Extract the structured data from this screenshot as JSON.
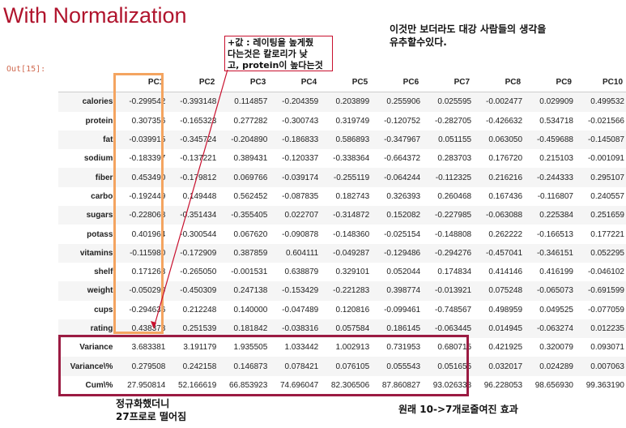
{
  "title": "With Normalization",
  "cell_label": "Out[15]:",
  "notes": {
    "top_right": [
      "이것만 보더라도 대강 사람들의 생각을",
      "유추할수있다."
    ],
    "callout": [
      "+값 : 레이팅을 높게줬",
      "다는것은 칼로리가 낮",
      "고, protein이 높다는것"
    ],
    "bottom_left": [
      "정규화했더니",
      "27프로로 떨어짐"
    ],
    "bottom_right": "원래 10->7개로줄여진 효과"
  },
  "table": {
    "columns": [
      "PC1",
      "PC2",
      "PC3",
      "PC4",
      "PC5",
      "PC6",
      "PC7",
      "PC8",
      "PC9",
      "PC10"
    ],
    "rows": [
      {
        "label": "calories",
        "values": [
          "-0.299542",
          "-0.393148",
          "0.114857",
          "-0.204359",
          "0.203899",
          "0.255906",
          "0.025595",
          "-0.002477",
          "0.029909",
          "0.499532"
        ]
      },
      {
        "label": "protein",
        "values": [
          "0.307356",
          "-0.165323",
          "0.277282",
          "-0.300743",
          "0.319749",
          "-0.120752",
          "-0.282705",
          "-0.426632",
          "0.534718",
          "-0.021566"
        ]
      },
      {
        "label": "fat",
        "values": [
          "-0.039915",
          "-0.345724",
          "-0.204890",
          "-0.186833",
          "0.586893",
          "-0.347967",
          "0.051155",
          "0.063050",
          "-0.459688",
          "-0.145087"
        ]
      },
      {
        "label": "sodium",
        "values": [
          "-0.183397",
          "-0.137221",
          "0.389431",
          "-0.120337",
          "-0.338364",
          "-0.664372",
          "0.283703",
          "0.176720",
          "0.215103",
          "-0.001091"
        ]
      },
      {
        "label": "fiber",
        "values": [
          "0.453490",
          "-0.179812",
          "0.069766",
          "-0.039174",
          "-0.255119",
          "-0.064244",
          "-0.112325",
          "0.216216",
          "-0.244333",
          "0.295107"
        ]
      },
      {
        "label": "carbo",
        "values": [
          "-0.192449",
          "0.149448",
          "0.562452",
          "-0.087835",
          "0.182743",
          "0.326393",
          "0.260468",
          "0.167436",
          "-0.116807",
          "0.240557"
        ]
      },
      {
        "label": "sugars",
        "values": [
          "-0.228068",
          "-0.351434",
          "-0.355405",
          "0.022707",
          "-0.314872",
          "0.152082",
          "-0.227985",
          "-0.063088",
          "0.225384",
          "0.251659"
        ]
      },
      {
        "label": "potass",
        "values": [
          "0.401964",
          "-0.300544",
          "0.067620",
          "-0.090878",
          "-0.148360",
          "-0.025154",
          "-0.148808",
          "0.262222",
          "-0.166513",
          "0.177221"
        ]
      },
      {
        "label": "vitamins",
        "values": [
          "-0.115980",
          "-0.172909",
          "0.387859",
          "0.604111",
          "-0.049287",
          "-0.129486",
          "-0.294276",
          "-0.457041",
          "-0.346151",
          "0.052295"
        ]
      },
      {
        "label": "shelf",
        "values": [
          "0.171263",
          "-0.265050",
          "-0.001531",
          "0.638879",
          "0.329101",
          "0.052044",
          "0.174834",
          "0.414146",
          "0.416199",
          "-0.046102"
        ]
      },
      {
        "label": "weight",
        "values": [
          "-0.050299",
          "-0.450309",
          "0.247138",
          "-0.153429",
          "-0.221283",
          "0.398774",
          "-0.013921",
          "0.075248",
          "-0.065073",
          "-0.691599"
        ]
      },
      {
        "label": "cups",
        "values": [
          "-0.294636",
          "0.212248",
          "0.140000",
          "-0.047489",
          "0.120816",
          "-0.099461",
          "-0.748567",
          "0.498959",
          "0.049525",
          "-0.077059"
        ]
      },
      {
        "label": "rating",
        "values": [
          "0.438378",
          "0.251539",
          "0.181842",
          "-0.038316",
          "0.057584",
          "0.186145",
          "-0.063445",
          "0.014945",
          "-0.063274",
          "0.012235"
        ]
      },
      {
        "label": "Variance",
        "values": [
          "3.683381",
          "3.191179",
          "1.935505",
          "1.033442",
          "1.002913",
          "0.731953",
          "0.680715",
          "0.421925",
          "0.320079",
          "0.093071"
        ]
      },
      {
        "label": "Variance\\%",
        "values": [
          "0.279508",
          "0.242158",
          "0.146873",
          "0.078421",
          "0.076105",
          "0.055543",
          "0.051655",
          "0.032017",
          "0.024289",
          "0.007063"
        ]
      },
      {
        "label": "Cum\\%",
        "values": [
          "27.950814",
          "52.166619",
          "66.853923",
          "74.696047",
          "82.306506",
          "87.860827",
          "93.026338",
          "96.228053",
          "98.656930",
          "99.363190"
        ]
      }
    ]
  },
  "colors": {
    "title": "#b0142d",
    "orange_box": "#f4a460",
    "maroon_box": "#9b1b42",
    "callout_border": "#c8102e"
  }
}
